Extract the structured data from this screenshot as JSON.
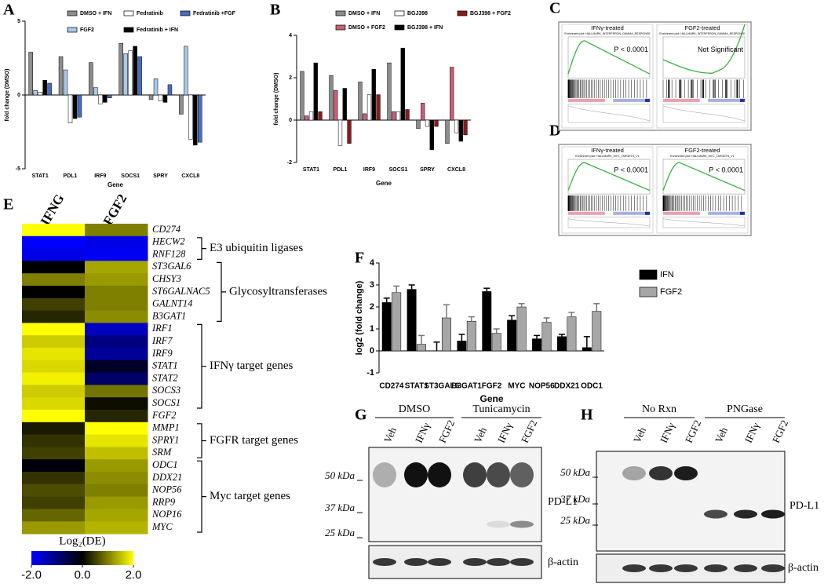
{
  "panel_labels": [
    "A",
    "B",
    "C",
    "D",
    "E",
    "F",
    "G",
    "H"
  ],
  "chart_data": [
    {
      "type": "bar",
      "ylabel": "fold change (DMSO)",
      "xlabel": "Gene",
      "categories": [
        "STAT1",
        "PDL1",
        "IRF9",
        "SOCS1",
        "SPRY",
        "CXCL8"
      ],
      "ylim": [
        -5,
        5
      ],
      "yticks": [
        -5,
        0,
        5
      ],
      "series": [
        {
          "name": "DMSO + IFN",
          "color": "#8c8c8c",
          "values": [
            2.9,
            2.6,
            2.2,
            3.5,
            -0.3,
            -1.3
          ]
        },
        {
          "name": "FGF2",
          "color": "#a9c8ea",
          "values": [
            0.3,
            1.7,
            0.5,
            2.8,
            1.1,
            3.3
          ]
        },
        {
          "name": "Fedratinib",
          "color": "#ffffff",
          "values": [
            0.2,
            -1.9,
            -0.6,
            3.0,
            -0.4,
            -3.0
          ]
        },
        {
          "name": "Fedratinib + IFN",
          "color": "#000000",
          "values": [
            1.0,
            -1.6,
            -0.5,
            3.3,
            -0.5,
            -3.4
          ]
        },
        {
          "name": "Fedratinib +FGF",
          "color": "#4a6cc0",
          "values": [
            0.8,
            -1.5,
            -0.2,
            2.6,
            0.7,
            -3.2
          ]
        }
      ]
    },
    {
      "type": "bar",
      "ylabel": "fold change (DMSO)",
      "xlabel": "Gene",
      "categories": [
        "STAT1",
        "PDL1",
        "IRF9",
        "SOCS1",
        "SPRY",
        "CXCL8"
      ],
      "ylim": [
        -2,
        4
      ],
      "yticks": [
        -2,
        0,
        2,
        4
      ],
      "series": [
        {
          "name": "DMSO + IFN",
          "color": "#8c8c8c",
          "values": [
            2.3,
            2.1,
            1.8,
            2.7,
            -0.4,
            -1.1
          ]
        },
        {
          "name": "DMSO + FGF2",
          "color": "#c9607a",
          "values": [
            0.2,
            1.4,
            0.3,
            0.4,
            0.8,
            2.5
          ]
        },
        {
          "name": "BGJ398",
          "color": "#ffffff",
          "values": [
            0.4,
            -1.2,
            1.2,
            0.4,
            -0.3,
            -0.6
          ]
        },
        {
          "name": "BGJ398 + IFN",
          "color": "#000000",
          "values": [
            2.7,
            1.5,
            2.4,
            3.4,
            -1.4,
            -1.0
          ]
        },
        {
          "name": "BGJ398 + FGF2",
          "color": "#8b1a1a",
          "values": [
            0.4,
            -1.1,
            1.2,
            0.5,
            -0.3,
            -0.7
          ]
        }
      ]
    },
    {
      "type": "heatmap",
      "columns": [
        "IFNG",
        "FGF2"
      ],
      "rows": [
        "CD274",
        "HECW2",
        "RNF128",
        "ST3GAL6",
        "CHSY3",
        "ST6GALNAC5",
        "GALNT14",
        "B3GAT1",
        "IRF1",
        "IRF7",
        "IRF9",
        "STAT1",
        "STAT2",
        "SOCS3",
        "SOCS1",
        "FGF2",
        "MMP1",
        "SPRY1",
        "SRM",
        "ODC1",
        "DDX21",
        "NOP56",
        "RRP9",
        "NOP16",
        "MYC"
      ],
      "values": [
        [
          2.0,
          1.0
        ],
        [
          -2.0,
          -1.8
        ],
        [
          -1.8,
          -1.9
        ],
        [
          0.0,
          1.3
        ],
        [
          1.0,
          1.2
        ],
        [
          0.0,
          1.0
        ],
        [
          0.5,
          1.0
        ],
        [
          0.3,
          1.1
        ],
        [
          2.0,
          -1.5
        ],
        [
          1.6,
          -1.0
        ],
        [
          1.8,
          -1.2
        ],
        [
          1.7,
          -0.3
        ],
        [
          1.9,
          -0.8
        ],
        [
          1.6,
          0.9
        ],
        [
          1.7,
          0.1
        ],
        [
          2.0,
          0.3
        ],
        [
          0.2,
          2.0
        ],
        [
          0.4,
          1.8
        ],
        [
          0.5,
          1.5
        ],
        [
          -0.1,
          1.2
        ],
        [
          0.4,
          1.1
        ],
        [
          0.6,
          1.0
        ],
        [
          0.5,
          1.2
        ],
        [
          0.8,
          1.3
        ],
        [
          1.2,
          1.4
        ]
      ],
      "zlim": [
        -2,
        2
      ],
      "colors": [
        "#0000ff",
        "#000000",
        "#ffff00"
      ],
      "colorbar": {
        "title": "Log₂(DE)",
        "ticks": [
          {
            "value": -2,
            "label": "-2.0"
          },
          {
            "value": 0,
            "label": "0.0"
          },
          {
            "value": 2,
            "label": "2.0"
          }
        ]
      },
      "groups": [
        {
          "label": "E3 ubiquitin ligases",
          "first": 1,
          "last": 2
        },
        {
          "label": "Glycosyltransferases",
          "first": 3,
          "last": 7
        },
        {
          "label": "IFNγ target genes",
          "first": 8,
          "last": 14
        },
        {
          "label": "FGFR target genes",
          "first": 16,
          "last": 18
        },
        {
          "label": "Myc target genes",
          "first": 19,
          "last": 24
        }
      ]
    },
    {
      "type": "bar",
      "ylabel": "log2 (fold change)",
      "xlabel": "Gene",
      "categories": [
        "CD274",
        "STAT1",
        "ST3GAL6",
        "B3GAT1",
        "FGF2",
        "MYC",
        "NOP56",
        "DDX21",
        "ODC1"
      ],
      "ylim": [
        -1,
        4
      ],
      "yticks": [
        -1,
        0,
        1,
        2,
        3,
        4
      ],
      "series": [
        {
          "name": "IFN",
          "color": "#000000",
          "values": [
            2.2,
            2.8,
            0.0,
            0.45,
            2.7,
            1.4,
            0.55,
            0.65,
            0.15
          ],
          "errors": [
            0.2,
            0.2,
            0.4,
            0.3,
            0.15,
            0.2,
            0.15,
            0.1,
            0.5
          ]
        },
        {
          "name": "FGF2",
          "color": "#a6a6a6",
          "values": [
            2.65,
            0.3,
            1.5,
            1.35,
            0.8,
            2.0,
            1.3,
            1.55,
            1.8
          ],
          "errors": [
            0.3,
            0.4,
            0.6,
            0.2,
            0.2,
            0.15,
            0.2,
            0.2,
            0.35
          ]
        }
      ]
    }
  ],
  "gsea": [
    {
      "panels": [
        {
          "title": "IFNγ-treated",
          "plot_title": "Enrichment plot: HALLMARK_INTERFERON_GAMMA_RESPONSE",
          "stat": "P < 0.0001"
        },
        {
          "title": "FGF2-treated",
          "plot_title": "Enrichment plot: HALLMARK_INTERFERON_GAMMA_RESPONSE",
          "stat": "Not Significant"
        }
      ]
    },
    {
      "panels": [
        {
          "title": "IFNγ-treated",
          "plot_title": "Enrichment plot: HALLMARK_MYC_TARGETS_V1",
          "stat": "P < 0.0001"
        },
        {
          "title": "FGF2-treated",
          "plot_title": "Enrichment plot: HALLMARK_MYC_TARGETS_V1",
          "stat": "P < 0.0001"
        }
      ]
    }
  ],
  "blots": [
    {
      "groups": [
        {
          "label": "DMSO",
          "lanes": [
            "Veh",
            "IFNγ",
            "FGF2"
          ]
        },
        {
          "label": "Tunicamycin",
          "lanes": [
            "Veh",
            "IFNγ",
            "FGF2"
          ]
        }
      ],
      "markers": [
        "50 kDa",
        "37 kDa",
        "25 kDa"
      ],
      "target": "PD-L1",
      "loading": "β-actin"
    },
    {
      "groups": [
        {
          "label": "No Rxn",
          "lanes": [
            "Veh",
            "IFNγ",
            "FGF2"
          ]
        },
        {
          "label": "PNGase",
          "lanes": [
            "Veh",
            "IFNγ",
            "FGF2"
          ]
        }
      ],
      "markers": [
        "50 kDa",
        "37 kDa",
        "25 kDa"
      ],
      "target": "PD-L1",
      "loading": "β-actin"
    }
  ]
}
